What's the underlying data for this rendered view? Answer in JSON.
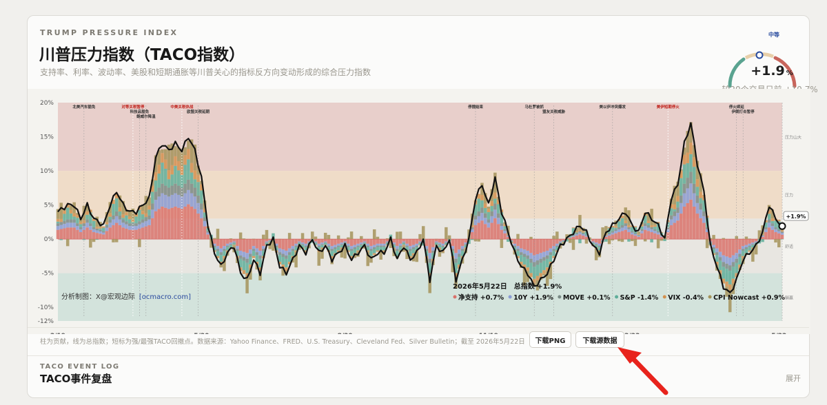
{
  "header": {
    "eyebrow": "TRUMP PRESSURE INDEX",
    "title": "川普压力指数（TACO指数）",
    "subtitle": "支持率、利率、波动率、美股和短期通胀等川普关心的指标反方向变动形成的综合压力指数"
  },
  "gauge": {
    "level": "中等",
    "value_text": "+1.9",
    "unit": "%",
    "comparison": "较20个交易日前 +10.7%",
    "value": 1.9,
    "colors": {
      "low": "#5aa390",
      "mid": "#e7cfa9",
      "high": "#c8655c"
    }
  },
  "chart_data": {
    "type": "area",
    "y_ticks": [
      "20%",
      "15%",
      "10%",
      "5%",
      "0%",
      "-5%",
      "-10%",
      "-12%"
    ],
    "ylim": [
      -12,
      20
    ],
    "x_ticks": [
      "2/19",
      "5/20",
      "8/20",
      "11/19",
      "2/23",
      "5/22"
    ],
    "zones": [
      {
        "label": "压力山大",
        "from": 10,
        "to": 20,
        "color": "#e8cfcb"
      },
      {
        "label": "压力",
        "from": 3,
        "to": 10,
        "color": "#efdcc8"
      },
      {
        "label": "舒适",
        "from": -5,
        "to": 3,
        "color": "#e8e6e1"
      },
      {
        "label": "躺赢",
        "from": -12,
        "to": -5,
        "color": "#d3e3dc"
      }
    ],
    "events": [
      {
        "label": "北美汽车豁免",
        "highlight": false
      },
      {
        "label": "对等关税暂停",
        "highlight": true
      },
      {
        "label": "科技品豁免",
        "highlight": false
      },
      {
        "label": "鲍威尔降温",
        "highlight": false
      },
      {
        "label": "中美关税休战",
        "highlight": true
      },
      {
        "label": "欧盟关税延期",
        "highlight": false
      },
      {
        "label": "停摆结束",
        "highlight": false
      },
      {
        "label": "马杜罗被抓",
        "highlight": false
      },
      {
        "label": "盟友关税威胁",
        "highlight": false
      },
      {
        "label": "美以伊冲突爆发",
        "highlight": false
      },
      {
        "label": "美伊短期停火",
        "highlight": true
      },
      {
        "label": "停火续延",
        "highlight": false
      },
      {
        "label": "伊朗打击暂停",
        "highlight": false
      }
    ],
    "series": [
      {
        "name": "净支持",
        "color": "#d9726b",
        "latest": "+0.7%"
      },
      {
        "name": "10Y",
        "color": "#8a9bd3",
        "latest": "+1.9%"
      },
      {
        "name": "MOVE",
        "color": "#7a8a86",
        "latest": "+0.1%"
      },
      {
        "name": "S&P",
        "color": "#5fae9a",
        "latest": "-1.4%"
      },
      {
        "name": "VIX",
        "color": "#d3914f",
        "latest": "-0.4%"
      },
      {
        "name": "CPI Nowcast",
        "color": "#a4935a",
        "latest": "+0.9%"
      }
    ],
    "index_points": [
      [
        0,
        4
      ],
      [
        3,
        5
      ],
      [
        5,
        5
      ],
      [
        7,
        3
      ],
      [
        9,
        5
      ],
      [
        11,
        3
      ],
      [
        14,
        2
      ],
      [
        16,
        5
      ],
      [
        18,
        7
      ],
      [
        20,
        5
      ],
      [
        22,
        4
      ],
      [
        24,
        4
      ],
      [
        26,
        5
      ],
      [
        28,
        6
      ],
      [
        30,
        12
      ],
      [
        32,
        14
      ],
      [
        34,
        13
      ],
      [
        36,
        14
      ],
      [
        38,
        13
      ],
      [
        40,
        15
      ],
      [
        42,
        13
      ],
      [
        44,
        9
      ],
      [
        46,
        2
      ],
      [
        48,
        -2
      ],
      [
        50,
        -4
      ],
      [
        52,
        -2
      ],
      [
        54,
        -1
      ],
      [
        56,
        -5
      ],
      [
        58,
        -6
      ],
      [
        60,
        -3
      ],
      [
        62,
        -5
      ],
      [
        64,
        -1
      ],
      [
        66,
        0
      ],
      [
        68,
        -4
      ],
      [
        70,
        -5
      ],
      [
        72,
        -3
      ],
      [
        74,
        -1
      ],
      [
        76,
        -2
      ],
      [
        78,
        0
      ],
      [
        80,
        -2
      ],
      [
        82,
        -1
      ],
      [
        84,
        -3
      ],
      [
        86,
        -2
      ],
      [
        88,
        -1
      ],
      [
        90,
        -3
      ],
      [
        92,
        -2
      ],
      [
        94,
        -1
      ],
      [
        96,
        -3
      ],
      [
        98,
        -2
      ],
      [
        100,
        -2
      ],
      [
        102,
        0
      ],
      [
        104,
        -3
      ],
      [
        106,
        -1
      ],
      [
        108,
        -3
      ],
      [
        110,
        -2
      ],
      [
        112,
        0
      ],
      [
        114,
        -6
      ],
      [
        116,
        -1
      ],
      [
        118,
        -2
      ],
      [
        120,
        0
      ],
      [
        122,
        -6
      ],
      [
        124,
        -3
      ],
      [
        126,
        0
      ],
      [
        128,
        6
      ],
      [
        130,
        8
      ],
      [
        132,
        5
      ],
      [
        134,
        9
      ],
      [
        136,
        4
      ],
      [
        138,
        1
      ],
      [
        140,
        -2
      ],
      [
        142,
        -4
      ],
      [
        144,
        -5
      ],
      [
        146,
        -7
      ],
      [
        148,
        -6
      ],
      [
        150,
        -5
      ],
      [
        152,
        -3
      ],
      [
        154,
        -1
      ],
      [
        156,
        0
      ],
      [
        158,
        1
      ],
      [
        160,
        2
      ],
      [
        162,
        1
      ],
      [
        164,
        -1
      ],
      [
        166,
        -2
      ],
      [
        168,
        1
      ],
      [
        170,
        2
      ],
      [
        172,
        3
      ],
      [
        174,
        4
      ],
      [
        176,
        2
      ],
      [
        178,
        1
      ],
      [
        180,
        4
      ],
      [
        182,
        3
      ],
      [
        184,
        2
      ],
      [
        186,
        0
      ],
      [
        188,
        6
      ],
      [
        190,
        8
      ],
      [
        192,
        14
      ],
      [
        194,
        17
      ],
      [
        196,
        11
      ],
      [
        198,
        7
      ],
      [
        200,
        -1
      ],
      [
        202,
        -4
      ],
      [
        204,
        -7
      ],
      [
        206,
        -8
      ],
      [
        208,
        -6
      ],
      [
        210,
        -3
      ],
      [
        212,
        -2
      ],
      [
        214,
        -1
      ],
      [
        216,
        1
      ],
      [
        218,
        5
      ],
      [
        220,
        3
      ],
      [
        222,
        1.9
      ]
    ]
  },
  "latest_box": {
    "date_label": "2026年5月22日",
    "total_label": "总指数 +1.9%",
    "end_tag": "+1.9%"
  },
  "watermark": {
    "prefix": "分析制图：X@宏观边际",
    "link": "[ocmacro.com]"
  },
  "footer": {
    "note": "柱为贡献，线为总指数；短标为强/最强TACO回撤点。数据来源：Yahoo Finance、FRED、U.S. Treasury、Cleveland Fed、Silver Bulletin；截至 2026年5月22日",
    "download_png": "下载PNG",
    "download_data": "下载源数据"
  },
  "event_log": {
    "eyebrow": "TACO EVENT LOG",
    "title": "TACO事件复盘",
    "expand": "展开"
  }
}
